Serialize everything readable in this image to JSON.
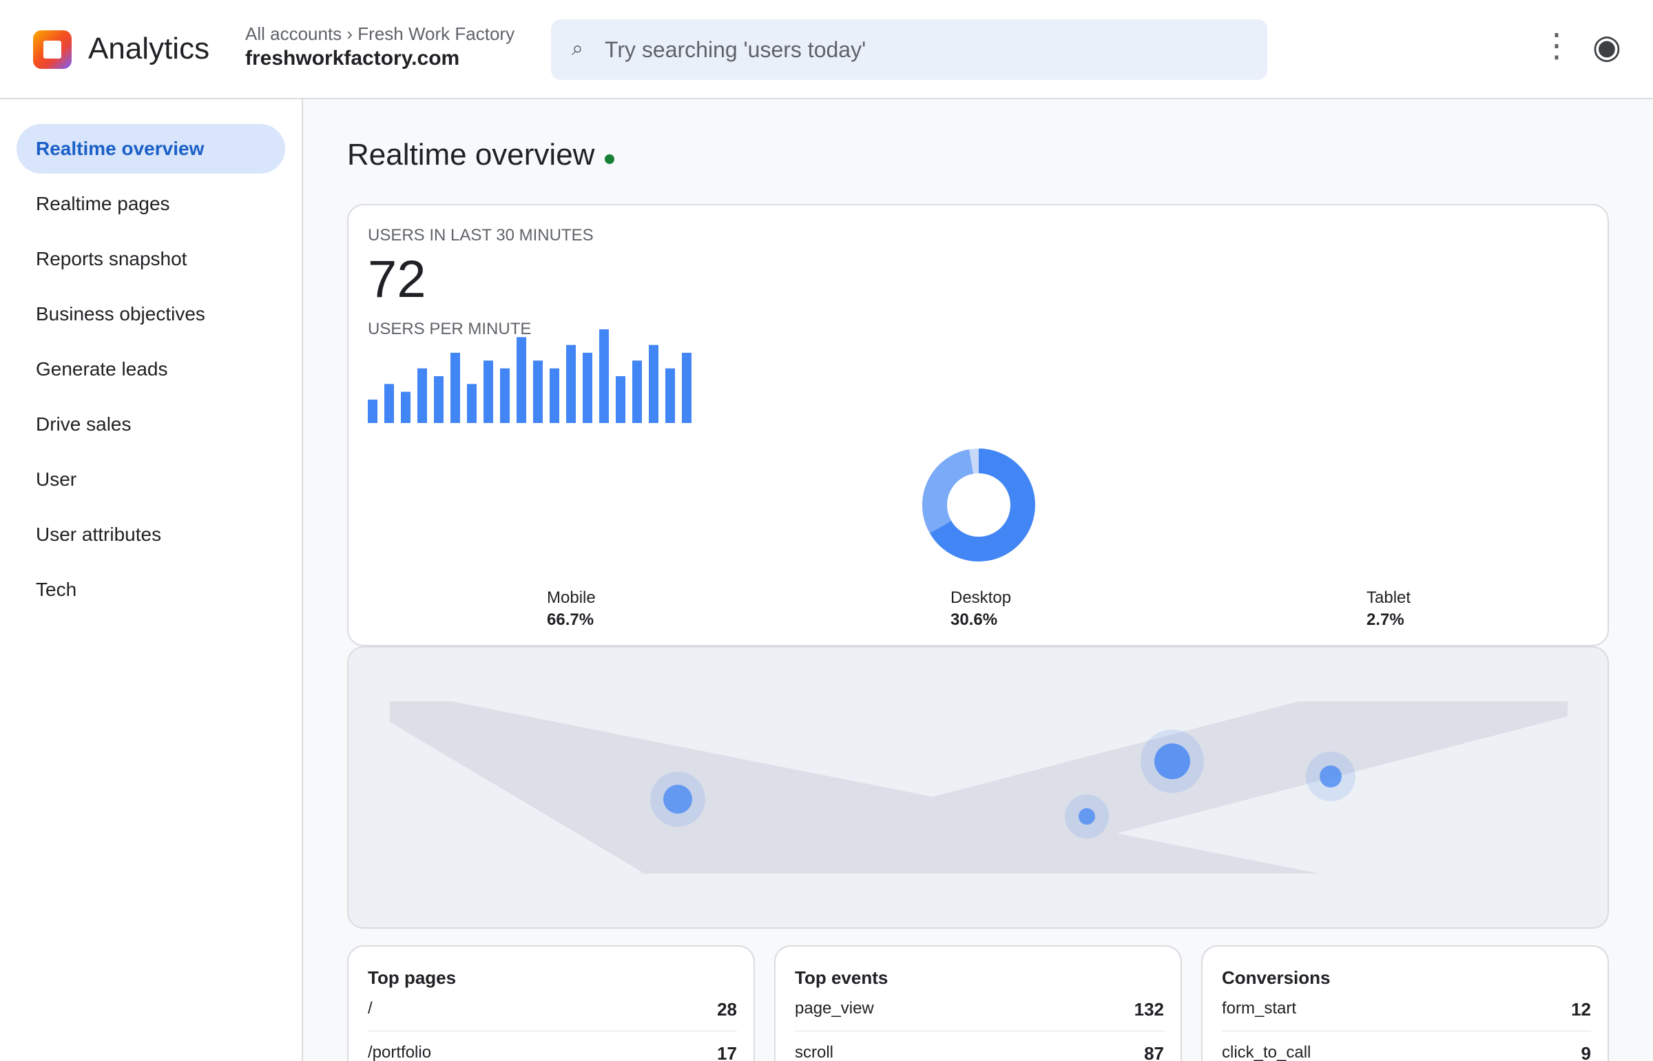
{
  "header": {
    "app_title": "Analytics",
    "breadcrumb": "All accounts › Fresh Work Factory",
    "property": "freshworkfactory.com",
    "search_placeholder": "Try searching 'users today'",
    "icons": {
      "logo": "analytics-logo-icon",
      "search": "search-icon",
      "more": "more-vert-icon",
      "account": "account-icon"
    }
  },
  "sidebar": {
    "items": [
      {
        "label": "Realtime overview",
        "active": true
      },
      {
        "label": "Realtime pages",
        "active": false
      },
      {
        "label": "Reports snapshot",
        "active": false
      },
      {
        "label": "Business objectives",
        "active": false
      },
      {
        "label": "Generate leads",
        "active": false
      },
      {
        "label": "Drive sales",
        "active": false
      },
      {
        "label": "User",
        "active": false
      },
      {
        "label": "User attributes",
        "active": false
      },
      {
        "label": "Tech",
        "active": false
      }
    ]
  },
  "main": {
    "title": "Realtime overview",
    "status_color": "#188038",
    "users_card": {
      "label": "USERS IN LAST 30 MINUTES",
      "value": "72",
      "per_minute_label": "USERS PER MINUTE"
    },
    "top_pages": {
      "title": "Top pages",
      "rows": [
        {
          "label": "/",
          "value": "28"
        },
        {
          "label": "/portfolio",
          "value": "17"
        }
      ]
    },
    "top_events": {
      "title": "Top events",
      "rows": [
        {
          "label": "page_view",
          "value": "132"
        },
        {
          "label": "scroll",
          "value": "87"
        }
      ]
    },
    "conversions": {
      "title": "Conversions",
      "rows": [
        {
          "label": "form_start",
          "value": "12"
        },
        {
          "label": "click_to_call",
          "value": "9"
        }
      ]
    }
  },
  "chart_data": [
    {
      "type": "bar",
      "title": "USERS PER MINUTE",
      "values": [
        3,
        5,
        4,
        7,
        6,
        9,
        5,
        8,
        7,
        11,
        8,
        7,
        10,
        9,
        12,
        6,
        8,
        10,
        7,
        9
      ],
      "ylim": [
        0,
        12
      ],
      "color": "#4285f4"
    },
    {
      "type": "pie",
      "labels": [
        "Mobile",
        "Desktop",
        "Tablet"
      ],
      "display_values": [
        "66.7%",
        "30.6%",
        "2.7%"
      ],
      "values": [
        66.7,
        30.6,
        2.7
      ],
      "colors": [
        "#4285f4",
        "#7baaf7",
        "#c8d9f8"
      ]
    }
  ]
}
